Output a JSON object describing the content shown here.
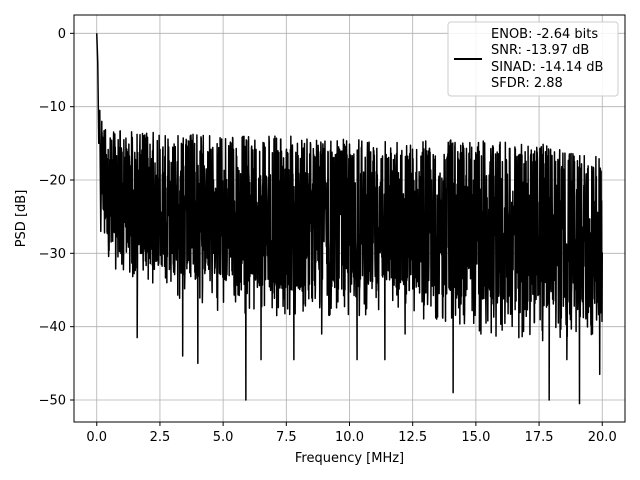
{
  "chart_data": {
    "type": "line",
    "xlabel": "Frequency [MHz]",
    "ylabel": "PSD [dB]",
    "xlim": [
      -0.9,
      20.9
    ],
    "ylim": [
      -53,
      2.5
    ],
    "x_ticks": [
      0.0,
      2.5,
      5.0,
      7.5,
      10.0,
      12.5,
      15.0,
      17.5,
      20.0
    ],
    "x_tick_labels": [
      "0.0",
      "2.5",
      "5.0",
      "7.5",
      "10.0",
      "12.5",
      "15.0",
      "17.5",
      "20.0"
    ],
    "y_ticks": [
      0,
      -10,
      -20,
      -30,
      -40,
      -50
    ],
    "y_tick_labels": [
      "0",
      "−10",
      "−20",
      "−30",
      "−40",
      "−50"
    ],
    "grid": true,
    "legend_position": "top-right",
    "line_color": "#000000",
    "legend": {
      "lines": [
        "ENOB: -2.64 bits",
        "SNR: -13.97 dB",
        "SINAD: -14.14 dB",
        "SFDR: 2.88"
      ]
    },
    "series": [
      {
        "x": [
          0.0,
          0.04,
          0.08,
          0.12,
          0.16,
          0.2,
          0.28,
          0.4,
          0.55,
          0.7,
          0.85,
          1.0,
          1.2,
          1.4,
          1.6,
          1.8,
          2.0,
          2.3,
          2.6,
          3.0,
          3.4,
          3.8,
          4.2,
          4.6,
          5.0,
          5.4,
          5.8,
          6.2,
          6.6,
          7.0,
          7.4,
          7.8,
          8.2,
          8.6,
          9.0,
          9.4,
          9.8,
          10.2,
          10.6,
          11.0,
          11.4,
          11.8,
          12.2,
          12.6,
          13.0,
          13.4,
          13.8,
          14.2,
          14.6,
          15.0,
          15.4,
          15.8,
          16.2,
          16.6,
          17.0,
          17.4,
          17.8,
          18.2,
          18.6,
          19.0,
          19.4,
          19.8,
          20.0
        ],
        "y": [
          0,
          -4,
          -15,
          -10.5,
          -27,
          -12,
          -20,
          -22,
          -24,
          -21,
          -25,
          -23,
          -22,
          -26,
          -21,
          -24,
          -22,
          -25,
          -23,
          -26,
          -22,
          -24,
          -25,
          -23,
          -26,
          -22,
          -24,
          -25,
          -23,
          -26,
          -22,
          -24,
          -25,
          -23,
          -26,
          -22,
          -24,
          -25,
          -23,
          -26,
          -22,
          -24,
          -25,
          -23,
          -26,
          -22,
          -24,
          -25,
          -23,
          -26,
          -22,
          -24,
          -25,
          -23,
          -26,
          -22,
          -24,
          -25,
          -23,
          -26,
          -22,
          -24,
          -23
        ]
      }
    ],
    "envelope": {
      "x": [
        0.05,
        0.4,
        1.0,
        2.0,
        3.0,
        5.0,
        7.5,
        10.0,
        12.5,
        15.0,
        17.5,
        20.0
      ],
      "upper": [
        -10.5,
        -12.5,
        -13,
        -13.5,
        -13.5,
        -14,
        -14,
        -14.5,
        -14.5,
        -14.5,
        -15,
        -17
      ],
      "lower": [
        -31,
        -37,
        -39,
        -40,
        -42,
        -44,
        -45,
        -45,
        -45,
        -47,
        -48,
        -47
      ]
    },
    "spikes": [
      {
        "x": 1.6,
        "y": -41.5
      },
      {
        "x": 3.4,
        "y": -44
      },
      {
        "x": 4.0,
        "y": -45
      },
      {
        "x": 5.9,
        "y": -50
      },
      {
        "x": 6.5,
        "y": -44.5
      },
      {
        "x": 7.8,
        "y": -44.5
      },
      {
        "x": 8.9,
        "y": -41
      },
      {
        "x": 10.3,
        "y": -44.5
      },
      {
        "x": 11.4,
        "y": -44.5
      },
      {
        "x": 12.2,
        "y": -41
      },
      {
        "x": 14.1,
        "y": -49
      },
      {
        "x": 15.2,
        "y": -41
      },
      {
        "x": 16.7,
        "y": -41.5
      },
      {
        "x": 17.9,
        "y": -50
      },
      {
        "x": 18.6,
        "y": -44.5
      },
      {
        "x": 19.1,
        "y": -50.5
      },
      {
        "x": 19.9,
        "y": -46.5
      }
    ]
  }
}
